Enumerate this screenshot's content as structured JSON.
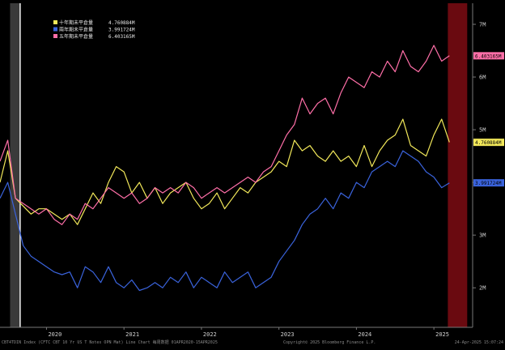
{
  "chart_data": {
    "type": "line",
    "title": "",
    "xlabel": "",
    "ylabel": "",
    "x_tick_labels": [
      "2020",
      "2021",
      "2022",
      "2023",
      "2024",
      "2025"
    ],
    "x_tick_years": [
      2020,
      2021,
      2022,
      2023,
      2024,
      2025
    ],
    "x_range": [
      2019.4,
      2025.5
    ],
    "y_tick_labels": [
      "7M",
      "6M",
      "5M",
      "4M",
      "3M",
      "2M"
    ],
    "y_tick_values": [
      7000000,
      6000000,
      5000000,
      4000000,
      3000000,
      2000000
    ],
    "ylim": [
      1250000,
      7400000
    ],
    "grid": false,
    "legend_position": "top-left",
    "series": [
      {
        "name": "十年期未平倉量",
        "legend_value": "4.760884M",
        "end_label": "4.760884M",
        "color": "#f2e85a",
        "x": [
          2019.4,
          2019.5,
          2019.6,
          2019.7,
          2019.8,
          2019.9,
          2020.0,
          2020.1,
          2020.2,
          2020.3,
          2020.4,
          2020.5,
          2020.6,
          2020.7,
          2020.8,
          2020.9,
          2021.0,
          2021.1,
          2021.2,
          2021.3,
          2021.4,
          2021.5,
          2021.6,
          2021.7,
          2021.8,
          2021.9,
          2022.0,
          2022.1,
          2022.2,
          2022.3,
          2022.4,
          2022.5,
          2022.6,
          2022.7,
          2022.8,
          2022.9,
          2023.0,
          2023.1,
          2023.2,
          2023.3,
          2023.4,
          2023.5,
          2023.6,
          2023.7,
          2023.8,
          2023.9,
          2024.0,
          2024.1,
          2024.2,
          2024.3,
          2024.4,
          2024.5,
          2024.6,
          2024.7,
          2024.8,
          2024.9,
          2025.0,
          2025.1,
          2025.2
        ],
        "values": [
          4000000,
          4600000,
          3700000,
          3550000,
          3400000,
          3500000,
          3500000,
          3400000,
          3300000,
          3400000,
          3200000,
          3500000,
          3800000,
          3600000,
          4000000,
          4300000,
          4200000,
          3800000,
          4000000,
          3700000,
          3900000,
          3600000,
          3800000,
          3900000,
          4000000,
          3700000,
          3500000,
          3600000,
          3800000,
          3500000,
          3700000,
          3900000,
          3800000,
          4000000,
          4100000,
          4200000,
          4400000,
          4300000,
          4800000,
          4600000,
          4700000,
          4500000,
          4400000,
          4600000,
          4400000,
          4500000,
          4300000,
          4700000,
          4300000,
          4600000,
          4800000,
          4900000,
          5200000,
          4700000,
          4600000,
          4500000,
          4900000,
          5200000,
          4760884
        ]
      },
      {
        "name": "兩年期未平倉量",
        "legend_value": "3.991724M",
        "end_label": "3.991724M",
        "color": "#3a63dc",
        "x": [
          2019.4,
          2019.5,
          2019.6,
          2019.7,
          2019.8,
          2019.9,
          2020.0,
          2020.1,
          2020.2,
          2020.3,
          2020.4,
          2020.5,
          2020.6,
          2020.7,
          2020.8,
          2020.9,
          2021.0,
          2021.1,
          2021.2,
          2021.3,
          2021.4,
          2021.5,
          2021.6,
          2021.7,
          2021.8,
          2021.9,
          2022.0,
          2022.1,
          2022.2,
          2022.3,
          2022.4,
          2022.5,
          2022.6,
          2022.7,
          2022.8,
          2022.9,
          2023.0,
          2023.1,
          2023.2,
          2023.3,
          2023.4,
          2023.5,
          2023.6,
          2023.7,
          2023.8,
          2023.9,
          2024.0,
          2024.1,
          2024.2,
          2024.3,
          2024.4,
          2024.5,
          2024.6,
          2024.7,
          2024.8,
          2024.9,
          2025.0,
          2025.1,
          2025.2
        ],
        "values": [
          3700000,
          4000000,
          3400000,
          2800000,
          2600000,
          2500000,
          2400000,
          2300000,
          2250000,
          2300000,
          2000000,
          2400000,
          2300000,
          2100000,
          2400000,
          2100000,
          2000000,
          2150000,
          1950000,
          2000000,
          2100000,
          2000000,
          2200000,
          2100000,
          2300000,
          2000000,
          2200000,
          2100000,
          2000000,
          2300000,
          2100000,
          2200000,
          2300000,
          2000000,
          2100000,
          2200000,
          2500000,
          2700000,
          2900000,
          3200000,
          3400000,
          3500000,
          3700000,
          3500000,
          3800000,
          3700000,
          4000000,
          3900000,
          4200000,
          4300000,
          4400000,
          4300000,
          4600000,
          4500000,
          4400000,
          4200000,
          4100000,
          3900000,
          3991724
        ]
      },
      {
        "name": "五年期未平倉量",
        "legend_value": "6.403165M",
        "end_label": "6.403165M",
        "color": "#ff6fa8",
        "x": [
          2019.4,
          2019.5,
          2019.6,
          2019.7,
          2019.8,
          2019.9,
          2020.0,
          2020.1,
          2020.2,
          2020.3,
          2020.4,
          2020.5,
          2020.6,
          2020.7,
          2020.8,
          2020.9,
          2021.0,
          2021.1,
          2021.2,
          2021.3,
          2021.4,
          2021.5,
          2021.6,
          2021.7,
          2021.8,
          2021.9,
          2022.0,
          2022.1,
          2022.2,
          2022.3,
          2022.4,
          2022.5,
          2022.6,
          2022.7,
          2022.8,
          2022.9,
          2023.0,
          2023.1,
          2023.2,
          2023.3,
          2023.4,
          2023.5,
          2023.6,
          2023.7,
          2023.8,
          2023.9,
          2024.0,
          2024.1,
          2024.2,
          2024.3,
          2024.4,
          2024.5,
          2024.6,
          2024.7,
          2024.8,
          2024.9,
          2025.0,
          2025.1,
          2025.2
        ],
        "values": [
          4400000,
          4800000,
          3700000,
          3600000,
          3500000,
          3400000,
          3500000,
          3300000,
          3200000,
          3400000,
          3300000,
          3600000,
          3500000,
          3700000,
          3900000,
          3800000,
          3700000,
          3800000,
          3600000,
          3700000,
          3900000,
          3800000,
          3900000,
          3800000,
          4000000,
          3900000,
          3700000,
          3800000,
          3900000,
          3800000,
          3900000,
          4000000,
          4100000,
          4000000,
          4200000,
          4300000,
          4600000,
          4900000,
          5100000,
          5600000,
          5300000,
          5500000,
          5600000,
          5300000,
          5700000,
          6000000,
          5900000,
          5800000,
          6100000,
          6000000,
          6300000,
          6100000,
          6500000,
          6200000,
          6100000,
          6300000,
          6600000,
          6300000,
          6403165
        ]
      }
    ],
    "shaded_regions": [
      {
        "from": 2019.53,
        "to": 2019.66,
        "color": "#3a3a3a"
      },
      {
        "from": 2025.18,
        "to": 2025.43,
        "color": "#6a0a10"
      }
    ],
    "vertical_line_x": 2019.66
  },
  "footer": {
    "source_text": "CBT4TDIN Index (CFTC CBT 10 Yr US T Notes OPN Mat) Line Chart  每周数据 01APR2020-15APR2025",
    "copyright_text": "Copyright© 2025 Bloomberg Finance L.P.",
    "timestamp_text": "24-Apr-2025 15:07:24"
  }
}
